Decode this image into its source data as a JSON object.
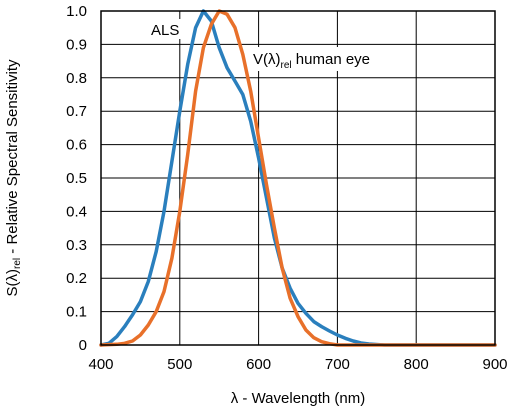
{
  "chart_data": {
    "type": "line",
    "xlabel": "λ - Wavelength (nm)",
    "ylabel_main": "S(λ)",
    "ylabel_sub": "rel",
    "ylabel_rest": " - Relative Spectral Sensitivity",
    "xlim": [
      400,
      900
    ],
    "ylim": [
      0,
      1.0
    ],
    "x_ticks": [
      "400",
      "500",
      "600",
      "700",
      "800",
      "900"
    ],
    "y_ticks": [
      "0",
      "0.1",
      "0.2",
      "0.3",
      "0.4",
      "0.5",
      "0.6",
      "0.7",
      "0.8",
      "0.9",
      "1.0"
    ],
    "grid": true,
    "series": [
      {
        "name": "ALS",
        "color": "#2a7fbd",
        "points": [
          [
            400,
            0.0
          ],
          [
            410,
            0.005
          ],
          [
            420,
            0.025
          ],
          [
            430,
            0.055
          ],
          [
            440,
            0.09
          ],
          [
            450,
            0.13
          ],
          [
            460,
            0.19
          ],
          [
            470,
            0.28
          ],
          [
            480,
            0.4
          ],
          [
            490,
            0.55
          ],
          [
            500,
            0.7
          ],
          [
            510,
            0.84
          ],
          [
            520,
            0.95
          ],
          [
            530,
            1.0
          ],
          [
            540,
            0.97
          ],
          [
            550,
            0.89
          ],
          [
            560,
            0.83
          ],
          [
            570,
            0.79
          ],
          [
            580,
            0.75
          ],
          [
            590,
            0.67
          ],
          [
            600,
            0.56
          ],
          [
            610,
            0.44
          ],
          [
            620,
            0.32
          ],
          [
            630,
            0.23
          ],
          [
            640,
            0.17
          ],
          [
            650,
            0.125
          ],
          [
            660,
            0.095
          ],
          [
            670,
            0.07
          ],
          [
            680,
            0.055
          ],
          [
            690,
            0.042
          ],
          [
            700,
            0.03
          ],
          [
            710,
            0.02
          ],
          [
            720,
            0.012
          ],
          [
            730,
            0.006
          ],
          [
            740,
            0.003
          ],
          [
            760,
            0.0
          ],
          [
            900,
            0.0
          ]
        ]
      },
      {
        "name": "",
        "color": "#e8702a",
        "points": [
          [
            400,
            0.0
          ],
          [
            420,
            0.002
          ],
          [
            430,
            0.005
          ],
          [
            440,
            0.012
          ],
          [
            450,
            0.03
          ],
          [
            460,
            0.06
          ],
          [
            470,
            0.1
          ],
          [
            480,
            0.16
          ],
          [
            490,
            0.26
          ],
          [
            500,
            0.4
          ],
          [
            510,
            0.57
          ],
          [
            520,
            0.76
          ],
          [
            530,
            0.89
          ],
          [
            540,
            0.96
          ],
          [
            550,
            1.0
          ],
          [
            560,
            0.99
          ],
          [
            570,
            0.95
          ],
          [
            580,
            0.87
          ],
          [
            590,
            0.76
          ],
          [
            600,
            0.62
          ],
          [
            610,
            0.48
          ],
          [
            620,
            0.35
          ],
          [
            630,
            0.23
          ],
          [
            640,
            0.14
          ],
          [
            650,
            0.085
          ],
          [
            660,
            0.045
          ],
          [
            670,
            0.022
          ],
          [
            680,
            0.01
          ],
          [
            690,
            0.004
          ],
          [
            700,
            0.0
          ],
          [
            900,
            0.0
          ]
        ]
      }
    ],
    "annotations": {
      "als_label": "ALS",
      "eye_label_main": "V(λ)",
      "eye_label_sub": "rel",
      "eye_label_rest": " human eye"
    }
  }
}
